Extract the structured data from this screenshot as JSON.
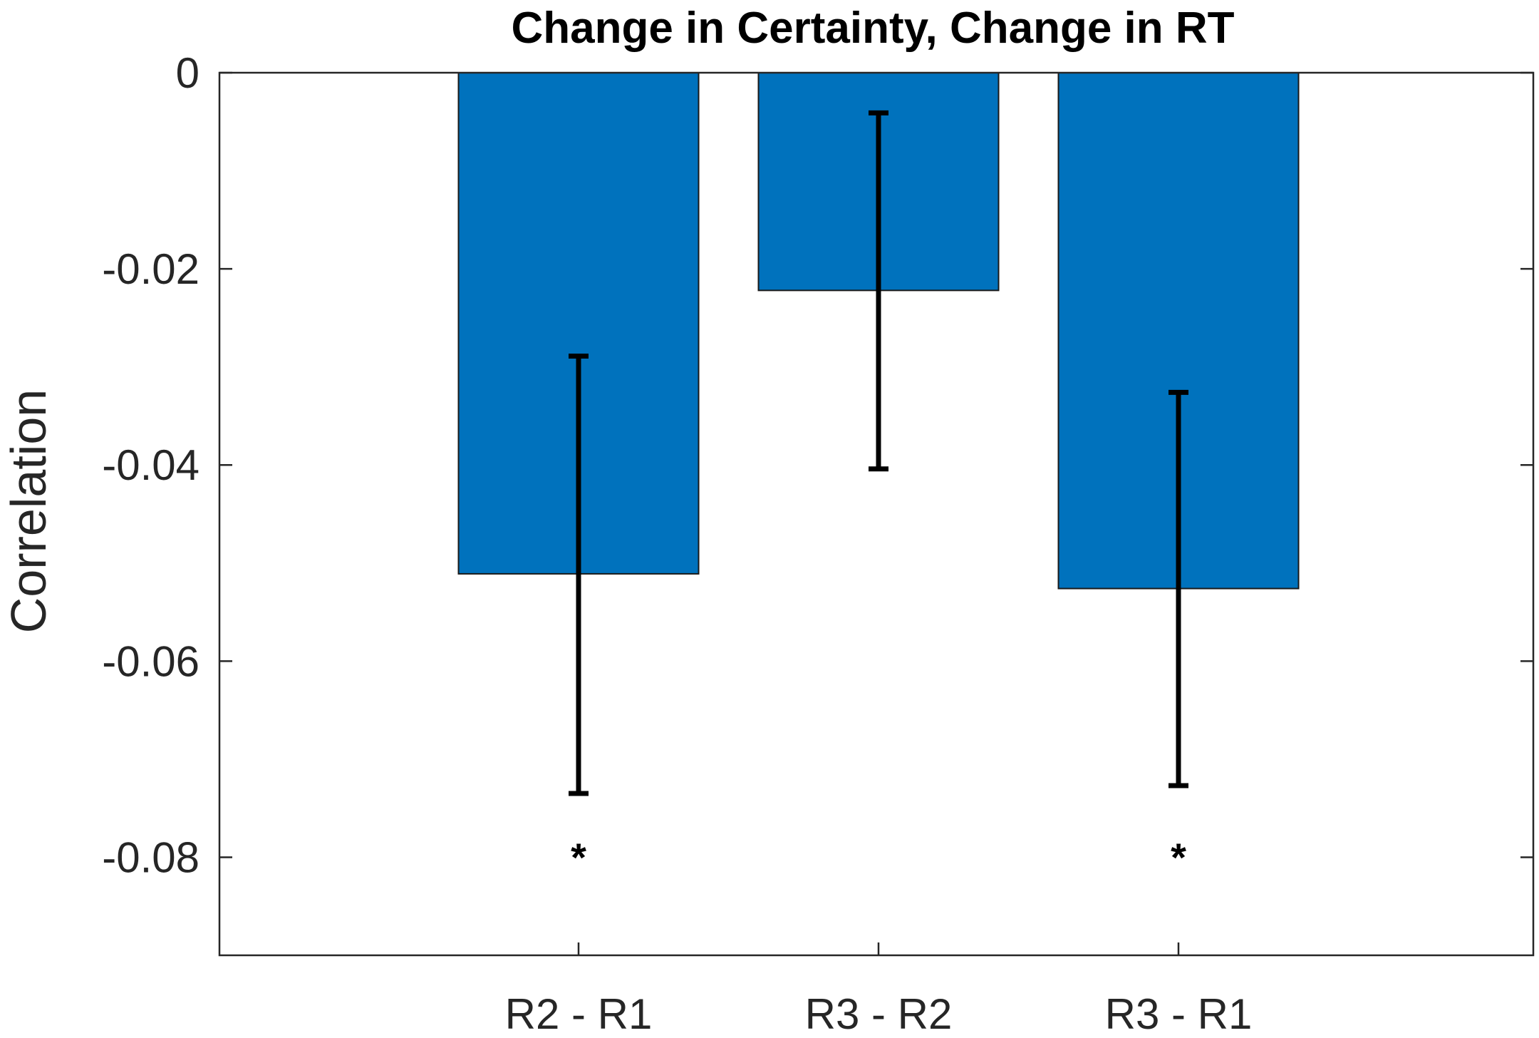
{
  "chart_data": {
    "type": "bar",
    "title": "Change in Certainty, Change in RT",
    "xlabel": "",
    "ylabel": "Correlation",
    "categories": [
      "R2 - R1",
      "R3 - R2",
      "R3 - R1"
    ],
    "values": [
      -0.0511,
      -0.0222,
      -0.0526
    ],
    "error_low": [
      -0.0735,
      -0.0404,
      -0.0727
    ],
    "error_high": [
      -0.0289,
      -0.0041,
      -0.0326
    ],
    "significance": [
      "*",
      "",
      "*"
    ],
    "ylim": [
      -0.09,
      0
    ],
    "yticks": [
      0,
      -0.02,
      -0.04,
      -0.06,
      -0.08
    ],
    "ytick_labels": [
      "0",
      "-0.02",
      "-0.04",
      "-0.06",
      "-0.08"
    ],
    "grid": false,
    "bar_color": "#0072BD",
    "error_color": "#000000"
  }
}
